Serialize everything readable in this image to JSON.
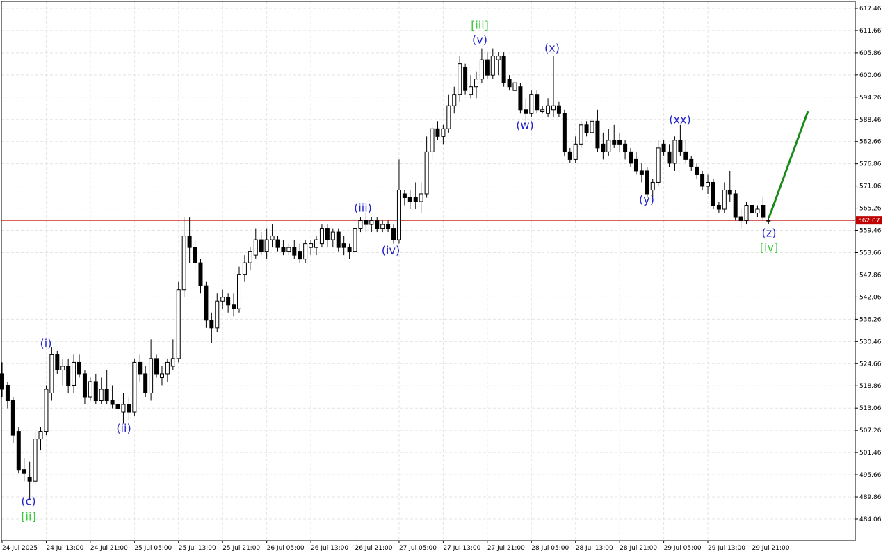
{
  "chart_data": {
    "type": "candlestick",
    "open": [
      522,
      519,
      515,
      507,
      497,
      495,
      494,
      505,
      507,
      517,
      527,
      523,
      524,
      519,
      525,
      522,
      516,
      520,
      515,
      518,
      515,
      514,
      512,
      514,
      512,
      525,
      522,
      517,
      526,
      521,
      522,
      524,
      526,
      544,
      558,
      555,
      551,
      545,
      536,
      534,
      541,
      542,
      540,
      539,
      548,
      551,
      553,
      557,
      554,
      557,
      557,
      555,
      554,
      555,
      554,
      552,
      555,
      555,
      556,
      560,
      557,
      559,
      556,
      555,
      554,
      560,
      562,
      561,
      562,
      560,
      561,
      560,
      557,
      569,
      568,
      568,
      567,
      569,
      580,
      586,
      584,
      586,
      592,
      595,
      602,
      595,
      597,
      599,
      604,
      600,
      604,
      605,
      599,
      596,
      597,
      591,
      590,
      595,
      590.5,
      590,
      591,
      592,
      590,
      580,
      578,
      582,
      587,
      585,
      588,
      582,
      580,
      583,
      583,
      582,
      580,
      578,
      575,
      575,
      570,
      572,
      582,
      580,
      577,
      583,
      580,
      578,
      576,
      574,
      571,
      572,
      566,
      565,
      570,
      569,
      563,
      562,
      566,
      564,
      566,
      562
    ],
    "high": [
      525,
      520,
      516,
      508,
      500,
      499,
      507,
      508,
      519,
      529,
      528,
      526,
      526,
      527,
      527,
      523,
      521,
      522,
      521,
      523,
      519,
      516,
      517,
      516,
      526,
      527,
      524,
      531,
      527,
      524,
      526,
      531,
      546,
      563,
      563,
      557,
      552,
      546,
      538,
      543,
      544,
      543,
      543,
      550,
      553,
      555,
      560,
      559,
      560,
      561,
      558,
      557,
      556,
      557,
      556,
      557,
      557,
      558,
      561,
      561,
      560,
      560,
      558,
      556,
      561,
      563,
      564,
      563,
      563,
      562,
      562,
      561,
      578,
      570,
      570,
      572,
      572,
      584,
      587,
      588,
      587,
      595,
      597,
      605,
      603,
      600,
      601,
      607,
      606,
      607,
      606,
      606,
      600,
      599,
      598,
      594,
      596,
      596,
      592,
      594,
      605,
      593,
      591,
      581,
      584,
      588,
      588,
      589,
      591,
      585,
      586,
      587,
      585,
      583,
      581,
      580,
      577,
      576,
      573,
      583,
      583,
      582,
      584,
      587,
      583,
      579,
      577,
      575,
      574,
      573,
      567,
      572,
      575,
      570,
      565,
      567,
      567,
      566,
      568,
      563
    ],
    "low": [
      516,
      513,
      504,
      496,
      494,
      489,
      493,
      502,
      506,
      515,
      522,
      519,
      517,
      517,
      521,
      514,
      515,
      514,
      514,
      514,
      513,
      510,
      509,
      510,
      511,
      520,
      516,
      515,
      521,
      519,
      520,
      523,
      525,
      542,
      551,
      549,
      543,
      534,
      530,
      533,
      539,
      538,
      537,
      538,
      546,
      549,
      552,
      553,
      552,
      555,
      554,
      553,
      553,
      552,
      551,
      551,
      553,
      553,
      555,
      555,
      555,
      554,
      553,
      552,
      553,
      559,
      559,
      559,
      559,
      559,
      559,
      556,
      556,
      566,
      565,
      565,
      564,
      568,
      578,
      583,
      582,
      585,
      590,
      593,
      595,
      594,
      594,
      598,
      599,
      599,
      600,
      597,
      596,
      594,
      590,
      588,
      589,
      590,
      590,
      589,
      589,
      589,
      579,
      577,
      577,
      581,
      584,
      583,
      580,
      578,
      579,
      581,
      580,
      578,
      576,
      574,
      572,
      568,
      568,
      571,
      579,
      576,
      575,
      579,
      577,
      575,
      573,
      570,
      569,
      565,
      564,
      564,
      567,
      562,
      560,
      561,
      563,
      563,
      562,
      561
    ],
    "close": [
      518,
      515,
      506,
      497,
      496,
      494,
      505,
      507,
      518,
      527,
      523,
      524,
      519,
      525,
      522,
      516,
      520,
      515,
      518,
      515,
      514,
      513,
      514,
      512,
      525,
      522,
      517,
      526,
      522,
      522,
      525,
      526,
      544,
      558,
      555,
      551,
      545,
      536,
      534,
      541,
      542,
      540,
      539,
      548,
      551,
      554,
      557,
      554,
      557,
      558,
      555,
      554,
      555,
      553,
      552,
      556,
      556,
      557,
      560,
      557,
      559,
      555,
      555,
      554,
      560,
      562,
      561,
      562,
      560,
      561,
      560,
      557,
      570,
      568,
      567,
      567,
      569,
      580,
      586,
      584,
      586,
      592,
      595,
      603,
      596,
      597,
      599,
      604,
      600,
      605,
      605,
      598,
      597,
      598,
      591,
      590,
      595,
      591,
      591,
      592,
      592,
      590,
      580,
      578,
      582,
      587,
      585,
      588,
      581,
      580,
      583,
      582,
      582,
      580,
      577,
      575,
      574,
      569,
      572,
      581,
      580,
      577,
      583,
      580,
      578,
      576,
      574,
      571,
      572,
      566,
      565,
      570,
      569,
      563,
      562,
      566,
      564,
      565,
      563,
      562.07
    ],
    "ylim": [
      478.43,
      619.27
    ],
    "yticks": [
      484.06,
      489.86,
      495.66,
      501.46,
      507.26,
      513.06,
      518.86,
      524.66,
      530.46,
      536.26,
      542.06,
      547.86,
      553.66,
      559.46,
      565.26,
      571.06,
      576.86,
      582.66,
      588.46,
      594.26,
      600.06,
      605.86,
      611.66,
      617.46
    ],
    "xlim": [
      0,
      154
    ],
    "xticks": [
      {
        "value": 0,
        "label": "24 Jul 2025"
      },
      {
        "value": 8,
        "label": "24 Jul 13:00"
      },
      {
        "value": 16,
        "label": "24 Jul 21:00"
      },
      {
        "value": 24,
        "label": "25 Jul 05:00"
      },
      {
        "value": 32,
        "label": "25 Jul 13:00"
      },
      {
        "value": 40,
        "label": "25 Jul 21:00"
      },
      {
        "value": 48,
        "label": "26 Jul 05:00"
      },
      {
        "value": 56,
        "label": "26 Jul 13:00"
      },
      {
        "value": 64,
        "label": "26 Jul 21:00"
      },
      {
        "value": 72,
        "label": "27 Jul 05:00"
      },
      {
        "value": 80,
        "label": "27 Jul 13:00"
      },
      {
        "value": 88,
        "label": "27 Jul 21:00"
      },
      {
        "value": 96,
        "label": "28 Jul 05:00"
      },
      {
        "value": 104,
        "label": "28 Jul 13:00"
      },
      {
        "value": 112,
        "label": "28 Jul 21:00"
      },
      {
        "value": 120,
        "label": "29 Jul 05:00"
      },
      {
        "value": 128,
        "label": "29 Jul 13:00"
      },
      {
        "value": 136,
        "label": "29 Jul 21:00"
      }
    ],
    "grid": true,
    "current_price": 562.07,
    "current_price_color": "#c00000",
    "forecast_color": "#1a8a1a",
    "wave_labels": [
      {
        "text": "(c)",
        "color": "#2222cc"
      },
      {
        "text": "[ii]",
        "color": "#3cc83c"
      },
      {
        "text": "(i)",
        "color": "#2222cc"
      },
      {
        "text": "(ii)",
        "color": "#2222cc"
      },
      {
        "text": "(iii)",
        "color": "#2222cc"
      },
      {
        "text": "(iv)",
        "color": "#2222cc"
      },
      {
        "text": "[iii]",
        "color": "#3cc83c"
      },
      {
        "text": "(v)",
        "color": "#2222cc"
      },
      {
        "text": "(x)",
        "color": "#2222cc"
      },
      {
        "text": "(w)",
        "color": "#2222cc"
      },
      {
        "text": "(xx)",
        "color": "#2222cc"
      },
      {
        "text": "(y)",
        "color": "#2222cc"
      },
      {
        "text": "(z)",
        "color": "#2222cc"
      },
      {
        "text": "[iv]",
        "color": "#3cc83c"
      }
    ]
  }
}
